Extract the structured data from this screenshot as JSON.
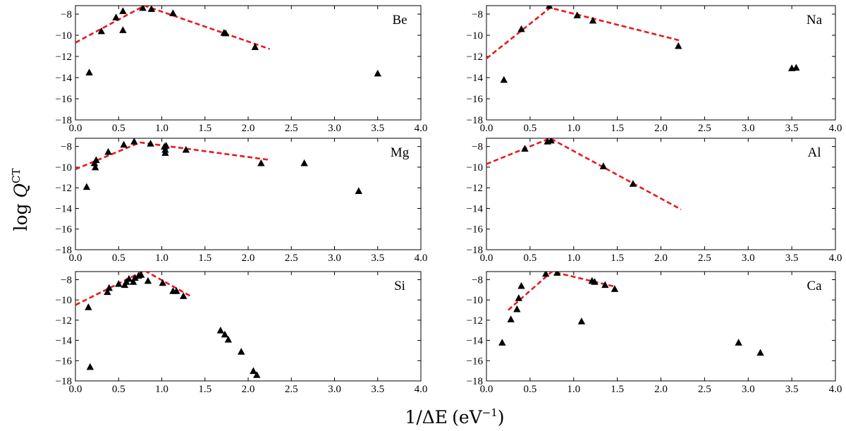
{
  "figure": {
    "ylabel": "log Q^CT",
    "ylabel_base": "log ",
    "ylabel_var": "Q",
    "ylabel_sup": "CT",
    "xlabel": "1/ΔE (eV^-1)",
    "xlabel_main": "1/ΔE",
    "xlabel_unit": "(eV",
    "xlabel_sup": "−1",
    "xlabel_close": ")",
    "marker_color": "#000000",
    "fit_color": "#e8191b"
  },
  "chart_data": [
    {
      "type": "scatter",
      "label": "Be",
      "xlim": [
        0.0,
        4.0
      ],
      "ylim": [
        -18,
        -7.2
      ],
      "xticks": [
        "0.0",
        "0.5",
        "1.0",
        "1.5",
        "2.0",
        "2.5",
        "3.0",
        "3.5",
        "4.0"
      ],
      "yticks": [
        -8,
        -10,
        -12,
        -14,
        -16,
        -18
      ],
      "points": [
        [
          0.16,
          -13.5
        ],
        [
          0.3,
          -9.6
        ],
        [
          0.47,
          -8.3
        ],
        [
          0.55,
          -7.7
        ],
        [
          0.55,
          -9.5
        ],
        [
          0.78,
          -7.4
        ],
        [
          0.88,
          -7.5
        ],
        [
          1.13,
          -7.9
        ],
        [
          1.72,
          -9.75
        ],
        [
          1.74,
          -9.8
        ],
        [
          2.08,
          -11.1
        ],
        [
          3.5,
          -13.6
        ]
      ],
      "fit": [
        [
          0.0,
          -10.7
        ],
        [
          0.8,
          -7.2
        ],
        [
          2.25,
          -11.3
        ]
      ]
    },
    {
      "type": "scatter",
      "label": "Na",
      "xlim": [
        0.0,
        4.0
      ],
      "ylim": [
        -18,
        -7.2
      ],
      "xticks": [
        "0.0",
        "0.5",
        "1.0",
        "1.5",
        "2.0",
        "2.5",
        "3.0",
        "3.5",
        "4.0"
      ],
      "yticks": [
        -8,
        -10,
        -12,
        -14,
        -16,
        -18
      ],
      "points": [
        [
          0.2,
          -14.2
        ],
        [
          0.4,
          -9.4
        ],
        [
          0.72,
          -7.2
        ],
        [
          1.04,
          -8.1
        ],
        [
          1.22,
          -8.6
        ],
        [
          2.2,
          -11.0
        ],
        [
          3.5,
          -13.1
        ],
        [
          3.55,
          -13.05
        ]
      ],
      "fit": [
        [
          0.0,
          -12.2
        ],
        [
          0.73,
          -7.4
        ],
        [
          2.22,
          -10.5
        ]
      ]
    },
    {
      "type": "scatter",
      "label": "Mg",
      "xlim": [
        0.0,
        4.0
      ],
      "ylim": [
        -18,
        -7.2
      ],
      "xticks": [
        "0.0",
        "0.5",
        "1.0",
        "1.5",
        "2.0",
        "2.5",
        "3.0",
        "3.5",
        "4.0"
      ],
      "yticks": [
        -8,
        -10,
        -12,
        -14,
        -16,
        -18
      ],
      "points": [
        [
          0.13,
          -11.9
        ],
        [
          0.22,
          -9.6
        ],
        [
          0.23,
          -10.0
        ],
        [
          0.24,
          -9.3
        ],
        [
          0.38,
          -8.5
        ],
        [
          0.56,
          -7.8
        ],
        [
          0.68,
          -7.5
        ],
        [
          0.87,
          -7.7
        ],
        [
          1.03,
          -8.0
        ],
        [
          1.04,
          -8.3
        ],
        [
          1.04,
          -8.6
        ],
        [
          1.05,
          -7.9
        ],
        [
          1.28,
          -8.3
        ],
        [
          2.15,
          -9.6
        ],
        [
          2.65,
          -9.6
        ],
        [
          3.28,
          -12.3
        ]
      ],
      "fit": [
        [
          0.0,
          -10.2
        ],
        [
          0.75,
          -7.6
        ],
        [
          2.25,
          -9.3
        ]
      ]
    },
    {
      "type": "scatter",
      "label": "Al",
      "xlim": [
        0.0,
        4.0
      ],
      "ylim": [
        -18,
        -7.2
      ],
      "xticks": [
        "0.0",
        "0.5",
        "1.0",
        "1.5",
        "2.0",
        "2.5",
        "3.0",
        "3.5",
        "4.0"
      ],
      "yticks": [
        -8,
        -10,
        -12,
        -14,
        -16,
        -18
      ],
      "points": [
        [
          0.44,
          -8.2
        ],
        [
          0.7,
          -7.5
        ],
        [
          0.74,
          -7.4
        ],
        [
          1.34,
          -9.9
        ],
        [
          1.68,
          -11.6
        ]
      ],
      "fit": [
        [
          0.0,
          -9.7
        ],
        [
          0.73,
          -7.2
        ],
        [
          2.23,
          -14.1
        ]
      ]
    },
    {
      "type": "scatter",
      "label": "Si",
      "xlim": [
        0.0,
        4.0
      ],
      "ylim": [
        -18,
        -7.2
      ],
      "xticks": [
        "0.0",
        "0.5",
        "1.0",
        "1.5",
        "2.0",
        "2.5",
        "3.0",
        "3.5",
        "4.0"
      ],
      "yticks": [
        -8,
        -10,
        -12,
        -14,
        -16,
        -18
      ],
      "points": [
        [
          0.15,
          -10.7
        ],
        [
          0.17,
          -16.6
        ],
        [
          0.37,
          -9.2
        ],
        [
          0.39,
          -8.8
        ],
        [
          0.5,
          -8.4
        ],
        [
          0.57,
          -8.5
        ],
        [
          0.59,
          -8.2
        ],
        [
          0.62,
          -7.9
        ],
        [
          0.67,
          -8.2
        ],
        [
          0.69,
          -7.8
        ],
        [
          0.73,
          -7.6
        ],
        [
          0.76,
          -7.5
        ],
        [
          0.84,
          -8.1
        ],
        [
          1.01,
          -8.3
        ],
        [
          1.13,
          -9.1
        ],
        [
          1.17,
          -9.1
        ],
        [
          1.25,
          -9.6
        ],
        [
          1.68,
          -13.0
        ],
        [
          1.73,
          -13.4
        ],
        [
          1.77,
          -13.9
        ],
        [
          1.92,
          -15.1
        ],
        [
          2.06,
          -17.0
        ],
        [
          2.1,
          -17.4
        ]
      ],
      "fit": [
        [
          0.0,
          -10.5
        ],
        [
          0.8,
          -7.1
        ],
        [
          1.35,
          -9.7
        ]
      ]
    },
    {
      "type": "scatter",
      "label": "Ca",
      "xlim": [
        0.0,
        4.0
      ],
      "ylim": [
        -18,
        -7.2
      ],
      "xticks": [
        "0.0",
        "0.5",
        "1.0",
        "1.5",
        "2.0",
        "2.5",
        "3.0",
        "3.5",
        "4.0"
      ],
      "yticks": [
        -8,
        -10,
        -12,
        -14,
        -16,
        -18
      ],
      "points": [
        [
          0.18,
          -14.2
        ],
        [
          0.28,
          -11.9
        ],
        [
          0.35,
          -10.9
        ],
        [
          0.37,
          -9.8
        ],
        [
          0.4,
          -8.6
        ],
        [
          0.68,
          -7.4
        ],
        [
          0.81,
          -7.3
        ],
        [
          1.09,
          -12.1
        ],
        [
          1.21,
          -8.1
        ],
        [
          1.24,
          -8.2
        ],
        [
          1.36,
          -8.5
        ],
        [
          1.47,
          -8.9
        ],
        [
          2.89,
          -14.2
        ],
        [
          3.14,
          -15.2
        ]
      ],
      "fit": [
        [
          0.25,
          -11.0
        ],
        [
          0.75,
          -7.2
        ],
        [
          1.48,
          -8.7
        ]
      ]
    }
  ]
}
